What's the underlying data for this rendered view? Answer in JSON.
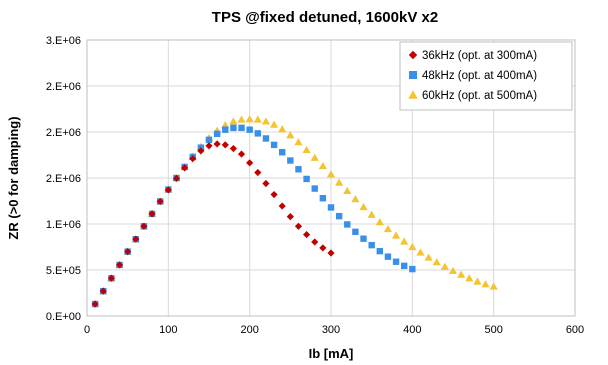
{
  "chart_data": {
    "type": "scatter",
    "title": "TPS @fixed detuned, 1600kV x2",
    "xlabel": "Ib [mA]",
    "ylabel": "ZR (>0 for damping)",
    "xlim": [
      0,
      600
    ],
    "ylim": [
      0,
      3000000
    ],
    "x_ticks": [
      0,
      100,
      200,
      300,
      400,
      500,
      600
    ],
    "x_tick_labels": [
      "0",
      "100",
      "200",
      "300",
      "400",
      "500",
      "600"
    ],
    "y_ticks": [
      0,
      500000,
      1000000,
      1500000,
      2000000,
      2500000,
      3000000
    ],
    "y_tick_labels": [
      "0.E+00",
      "5.E+05",
      "1.E+06",
      "2.E+06",
      "2.E+06",
      "2.E+06",
      "3.E+06"
    ],
    "grid": true,
    "legend_position": "top-right",
    "series": [
      {
        "name": "36kHz (opt. at 300mA)",
        "marker": "diamond",
        "color": "#c00000",
        "points": [
          [
            10,
            130000
          ],
          [
            20,
            270000
          ],
          [
            30,
            410000
          ],
          [
            40,
            555000
          ],
          [
            50,
            700000
          ],
          [
            60,
            835000
          ],
          [
            70,
            975000
          ],
          [
            80,
            1110000
          ],
          [
            90,
            1245000
          ],
          [
            100,
            1370000
          ],
          [
            110,
            1495000
          ],
          [
            120,
            1610000
          ],
          [
            130,
            1710000
          ],
          [
            140,
            1795000
          ],
          [
            150,
            1850000
          ],
          [
            160,
            1870000
          ],
          [
            170,
            1860000
          ],
          [
            180,
            1820000
          ],
          [
            190,
            1760000
          ],
          [
            200,
            1665000
          ],
          [
            210,
            1560000
          ],
          [
            220,
            1440000
          ],
          [
            230,
            1320000
          ],
          [
            240,
            1195000
          ],
          [
            250,
            1080000
          ],
          [
            260,
            975000
          ],
          [
            270,
            885000
          ],
          [
            280,
            805000
          ],
          [
            290,
            740000
          ],
          [
            300,
            685000
          ]
        ]
      },
      {
        "name": "48kHz (opt. at 400mA)",
        "marker": "square",
        "color": "#3a8fe8",
        "points": [
          [
            10,
            130000
          ],
          [
            20,
            270000
          ],
          [
            30,
            410000
          ],
          [
            40,
            555000
          ],
          [
            50,
            700000
          ],
          [
            60,
            835000
          ],
          [
            70,
            975000
          ],
          [
            80,
            1110000
          ],
          [
            90,
            1245000
          ],
          [
            100,
            1375000
          ],
          [
            110,
            1500000
          ],
          [
            120,
            1620000
          ],
          [
            130,
            1730000
          ],
          [
            140,
            1830000
          ],
          [
            150,
            1915000
          ],
          [
            160,
            1980000
          ],
          [
            170,
            2025000
          ],
          [
            180,
            2045000
          ],
          [
            190,
            2045000
          ],
          [
            200,
            2025000
          ],
          [
            210,
            1985000
          ],
          [
            220,
            1930000
          ],
          [
            230,
            1860000
          ],
          [
            240,
            1780000
          ],
          [
            250,
            1690000
          ],
          [
            260,
            1595000
          ],
          [
            270,
            1490000
          ],
          [
            280,
            1385000
          ],
          [
            290,
            1280000
          ],
          [
            300,
            1180000
          ],
          [
            310,
            1085000
          ],
          [
            320,
            995000
          ],
          [
            330,
            915000
          ],
          [
            340,
            840000
          ],
          [
            350,
            770000
          ],
          [
            360,
            705000
          ],
          [
            370,
            645000
          ],
          [
            380,
            590000
          ],
          [
            390,
            545000
          ],
          [
            400,
            510000
          ]
        ]
      },
      {
        "name": "60kHz (opt. at 500mA)",
        "marker": "triangle",
        "color": "#f4c430",
        "points": [
          [
            10,
            130000
          ],
          [
            20,
            270000
          ],
          [
            30,
            410000
          ],
          [
            40,
            555000
          ],
          [
            50,
            700000
          ],
          [
            60,
            835000
          ],
          [
            70,
            975000
          ],
          [
            80,
            1110000
          ],
          [
            90,
            1245000
          ],
          [
            100,
            1375000
          ],
          [
            110,
            1500000
          ],
          [
            120,
            1620000
          ],
          [
            130,
            1735000
          ],
          [
            140,
            1840000
          ],
          [
            150,
            1935000
          ],
          [
            160,
            2015000
          ],
          [
            170,
            2075000
          ],
          [
            180,
            2115000
          ],
          [
            190,
            2135000
          ],
          [
            200,
            2140000
          ],
          [
            210,
            2135000
          ],
          [
            220,
            2115000
          ],
          [
            230,
            2080000
          ],
          [
            240,
            2030000
          ],
          [
            250,
            1965000
          ],
          [
            260,
            1890000
          ],
          [
            270,
            1805000
          ],
          [
            280,
            1720000
          ],
          [
            290,
            1630000
          ],
          [
            300,
            1540000
          ],
          [
            310,
            1450000
          ],
          [
            320,
            1360000
          ],
          [
            330,
            1270000
          ],
          [
            340,
            1185000
          ],
          [
            350,
            1100000
          ],
          [
            360,
            1020000
          ],
          [
            370,
            945000
          ],
          [
            380,
            875000
          ],
          [
            390,
            810000
          ],
          [
            400,
            750000
          ],
          [
            410,
            690000
          ],
          [
            420,
            635000
          ],
          [
            430,
            585000
          ],
          [
            440,
            535000
          ],
          [
            450,
            490000
          ],
          [
            460,
            450000
          ],
          [
            470,
            410000
          ],
          [
            480,
            375000
          ],
          [
            490,
            345000
          ],
          [
            500,
            320000
          ]
        ]
      }
    ]
  }
}
